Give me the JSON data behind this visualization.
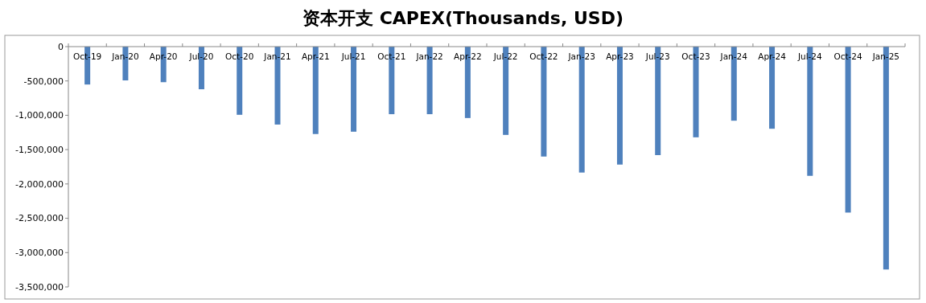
{
  "chart_data": {
    "type": "bar",
    "title": "资本开支 CAPEX(Thousands, USD)",
    "categories": [
      "Oct-19",
      "Jan-20",
      "Apr-20",
      "Jul-20",
      "Oct-20",
      "Jan-21",
      "Apr-21",
      "Jul-21",
      "Oct-21",
      "Jan-22",
      "Apr-22",
      "Jul-22",
      "Oct-22",
      "Jan-23",
      "Apr-23",
      "Jul-23",
      "Oct-23",
      "Jan-24",
      "Apr-24",
      "Jul-24",
      "Oct-24",
      "Jan-25"
    ],
    "values": [
      -552000,
      -492000,
      -518000,
      -621000,
      -993000,
      -1135000,
      -1273000,
      -1239000,
      -984000,
      -984000,
      -1040000,
      -1286000,
      -1601000,
      -1834000,
      -1718000,
      -1580000,
      -1321000,
      -1079000,
      -1196000,
      -1882000,
      -2417000,
      -3246000
    ],
    "color": "#4f81bd",
    "ylim": [
      -3500000,
      0
    ],
    "yticks": [
      {
        "value": 0,
        "label": "0"
      },
      {
        "value": -500000,
        "label": "-500,000"
      },
      {
        "value": -1000000,
        "label": "-1,000,000"
      },
      {
        "value": -1500000,
        "label": "-1,500,000"
      },
      {
        "value": -2000000,
        "label": "-2,000,000"
      },
      {
        "value": -2500000,
        "label": "-2,500,000"
      },
      {
        "value": -3000000,
        "label": "-3,000,000"
      },
      {
        "value": -3500000,
        "label": "-3,500,000"
      }
    ],
    "grid": false
  }
}
